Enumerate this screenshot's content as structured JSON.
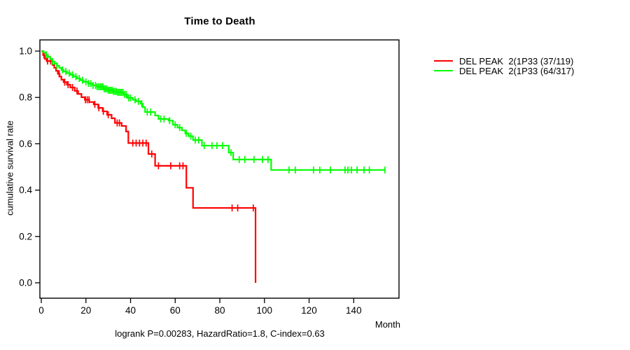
{
  "title": "Time to Death",
  "annotation": "logrank P=0.00283, HazardRatio=1.8, C-index=0.63",
  "axes": {
    "xlabel": "Month",
    "ylabel": "cumulative survival rate"
  },
  "legend": {
    "items": [
      {
        "label": "DEL PEAK  2(1P33 (37/119)",
        "color": "#ff0000"
      },
      {
        "label": "DEL PEAK  2(1P33 (64/317)",
        "color": "#00ff00"
      }
    ]
  },
  "chart_data": {
    "type": "line",
    "subtype": "kaplan-meier-step",
    "title": "Time to Death",
    "xlabel": "Month",
    "ylabel": "cumulative survival rate",
    "xlim": [
      0,
      160
    ],
    "ylim": [
      0.0,
      1.0
    ],
    "x_ticks": [
      0,
      20,
      40,
      60,
      80,
      100,
      120,
      140
    ],
    "y_tick_labels": [
      "0.0",
      "0.2",
      "0.4",
      "0.6",
      "0.8",
      "1.0"
    ],
    "y_tick_values": [
      0.0,
      0.2,
      0.4,
      0.6,
      0.8,
      1.0
    ],
    "grid": false,
    "legend_position": "right-top-outside",
    "frame_color": "#000000",
    "series": [
      {
        "name": "DEL PEAK  2(1P33 (37/119)",
        "color": "#ff0000",
        "end_month": 96,
        "steps": [
          [
            0,
            1.0
          ],
          [
            0.8,
            0.983
          ],
          [
            1.6,
            0.966
          ],
          [
            2.4,
            0.957
          ],
          [
            5,
            0.94
          ],
          [
            5.8,
            0.928
          ],
          [
            6.6,
            0.915
          ],
          [
            7.4,
            0.902
          ],
          [
            8.2,
            0.89
          ],
          [
            9,
            0.877
          ],
          [
            10,
            0.866
          ],
          [
            11.5,
            0.855
          ],
          [
            13,
            0.843
          ],
          [
            15,
            0.828
          ],
          [
            16.5,
            0.815
          ],
          [
            18,
            0.801
          ],
          [
            19.5,
            0.79
          ],
          [
            21.5,
            0.78
          ],
          [
            23.5,
            0.77
          ],
          [
            25.5,
            0.755
          ],
          [
            27.5,
            0.74
          ],
          [
            29.5,
            0.725
          ],
          [
            31.5,
            0.71
          ],
          [
            33,
            0.69
          ],
          [
            36,
            0.677
          ],
          [
            38,
            0.653
          ],
          [
            39,
            0.603
          ],
          [
            48,
            0.556
          ],
          [
            51,
            0.505
          ],
          [
            65,
            0.41
          ],
          [
            68,
            0.323
          ],
          [
            96,
            0.0
          ]
        ],
        "censor_months": [
          1.2,
          2.8,
          4.2,
          8,
          10.5,
          12,
          14,
          16,
          19.8,
          20.6,
          21.4,
          24,
          25.8,
          27.8,
          30,
          34,
          35,
          41,
          42.5,
          44,
          45.5,
          47,
          49.5,
          52.5,
          58,
          62,
          63.5,
          85.5,
          88,
          95
        ]
      },
      {
        "name": "DEL PEAK  2(1P33 (64/317)",
        "color": "#00ff00",
        "end_month": 154,
        "steps": [
          [
            0,
            1.0
          ],
          [
            1,
            0.994
          ],
          [
            2,
            0.984
          ],
          [
            3,
            0.975
          ],
          [
            4,
            0.965
          ],
          [
            5,
            0.955
          ],
          [
            6,
            0.946
          ],
          [
            7,
            0.937
          ],
          [
            8,
            0.928
          ],
          [
            9,
            0.919
          ],
          [
            10,
            0.912
          ],
          [
            11.5,
            0.905
          ],
          [
            13,
            0.898
          ],
          [
            14.5,
            0.89
          ],
          [
            16,
            0.882
          ],
          [
            17.5,
            0.874
          ],
          [
            19,
            0.867
          ],
          [
            21,
            0.86
          ],
          [
            23,
            0.852
          ],
          [
            25,
            0.846
          ],
          [
            28,
            0.837
          ],
          [
            30,
            0.831
          ],
          [
            32,
            0.826
          ],
          [
            34,
            0.822
          ],
          [
            37,
            0.813
          ],
          [
            38.5,
            0.798
          ],
          [
            41,
            0.79
          ],
          [
            42.5,
            0.783
          ],
          [
            44.5,
            0.773
          ],
          [
            45.5,
            0.758
          ],
          [
            46.5,
            0.737
          ],
          [
            51,
            0.722
          ],
          [
            52.5,
            0.707
          ],
          [
            57,
            0.7
          ],
          [
            59,
            0.682
          ],
          [
            61,
            0.67
          ],
          [
            63,
            0.658
          ],
          [
            64.5,
            0.645
          ],
          [
            66,
            0.633
          ],
          [
            68,
            0.616
          ],
          [
            72,
            0.592
          ],
          [
            84,
            0.562
          ],
          [
            86,
            0.532
          ],
          [
            103,
            0.487
          ]
        ],
        "censor_months": [
          2.3,
          5,
          7,
          9.5,
          11,
          12.5,
          14,
          15.5,
          17,
          18.5,
          20,
          21.2,
          22.2,
          23.2,
          24.3,
          25,
          25.7,
          26.4,
          27,
          27.6,
          28.2,
          28.8,
          29.4,
          30,
          30.6,
          31.2,
          31.8,
          32.4,
          33,
          33.6,
          34.2,
          34.8,
          35.4,
          36,
          36.6,
          37.3,
          38,
          39.2,
          40,
          42,
          43.5,
          45,
          47.5,
          49,
          53.5,
          55,
          57.5,
          60,
          62,
          65,
          67,
          69,
          70.5,
          73,
          76.5,
          78.7,
          81.2,
          85,
          88.7,
          91.2,
          95.3,
          99.1,
          101.6,
          111,
          113.8,
          122,
          124.8,
          129.5,
          136.1,
          137.4,
          139,
          141.5,
          144.6,
          147,
          154
        ]
      }
    ]
  }
}
